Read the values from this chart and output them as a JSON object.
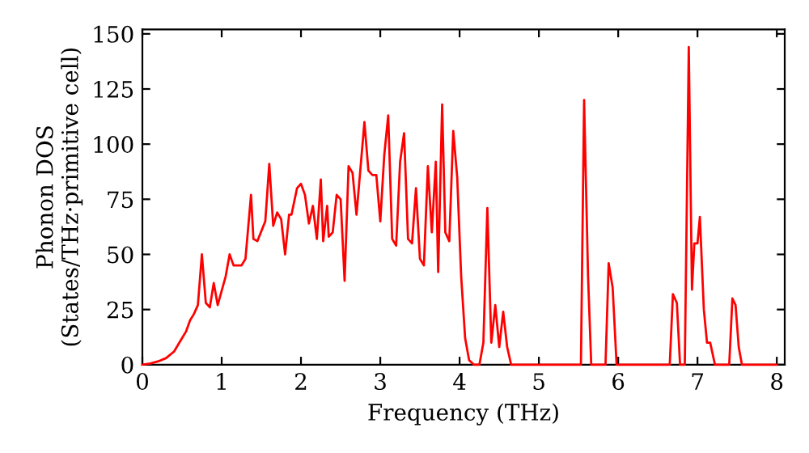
{
  "chart_data": {
    "type": "line",
    "xlabel": "Frequency (THz)",
    "ylabel": "Phonon DOS\n(States/THz·primitive cell)",
    "xlim": [
      0,
      8.1
    ],
    "ylim": [
      0,
      152
    ],
    "xticks": [
      0,
      1,
      2,
      3,
      4,
      5,
      6,
      7,
      8
    ],
    "yticks": [
      0,
      25,
      50,
      75,
      100,
      125,
      150
    ],
    "grid": false,
    "legend": false,
    "series": [
      {
        "color": "#ff0000",
        "x": [
          0,
          0.1,
          0.2,
          0.3,
          0.4,
          0.5,
          0.55,
          0.6,
          0.65,
          0.7,
          0.75,
          0.8,
          0.85,
          0.9,
          0.95,
          1.05,
          1.1,
          1.15,
          1.25,
          1.3,
          1.37,
          1.4,
          1.45,
          1.55,
          1.6,
          1.65,
          1.7,
          1.75,
          1.8,
          1.85,
          1.88,
          1.95,
          2.0,
          2.05,
          2.1,
          2.15,
          2.2,
          2.25,
          2.28,
          2.33,
          2.35,
          2.4,
          2.45,
          2.5,
          2.55,
          2.6,
          2.65,
          2.7,
          2.8,
          2.85,
          2.9,
          2.95,
          3.0,
          3.05,
          3.1,
          3.15,
          3.2,
          3.25,
          3.3,
          3.35,
          3.4,
          3.45,
          3.5,
          3.55,
          3.6,
          3.65,
          3.7,
          3.73,
          3.78,
          3.82,
          3.87,
          3.92,
          3.97,
          4.02,
          4.07,
          4.12,
          4.18,
          4.25,
          4.3,
          4.35,
          4.4,
          4.45,
          4.5,
          4.55,
          4.6,
          4.65,
          5.5,
          5.53,
          5.57,
          5.62,
          5.66,
          5.84,
          5.88,
          5.93,
          5.98,
          6.65,
          6.69,
          6.74,
          6.78,
          6.84,
          6.89,
          6.93,
          6.96,
          7.0,
          7.03,
          7.08,
          7.12,
          7.16,
          7.22,
          7.4,
          7.44,
          7.48,
          7.52,
          7.56,
          8.0
        ],
        "values": [
          0,
          0.5,
          1.5,
          3,
          6,
          12,
          15,
          20,
          23,
          27,
          50,
          28,
          26,
          37,
          27,
          40,
          50,
          45,
          45,
          48,
          77,
          57,
          56,
          65,
          91,
          63,
          69,
          66,
          50,
          68,
          68,
          80,
          82,
          77,
          64,
          72,
          57,
          84,
          56,
          72,
          58,
          60,
          77,
          75,
          38,
          90,
          87,
          68,
          110,
          88,
          86,
          86,
          65,
          95,
          113,
          57,
          54,
          92,
          105,
          57,
          55,
          80,
          48,
          45,
          90,
          60,
          92,
          42,
          118,
          60,
          56,
          106,
          85,
          40,
          12,
          2,
          0,
          0,
          10,
          71,
          10,
          27,
          8,
          24,
          8,
          0,
          0,
          0,
          120,
          40,
          0,
          0,
          46,
          35,
          0,
          0,
          32,
          28,
          0,
          0,
          144,
          34,
          55,
          55,
          67,
          25,
          10,
          10,
          0,
          0,
          30,
          27,
          8,
          0,
          0
        ]
      }
    ]
  }
}
